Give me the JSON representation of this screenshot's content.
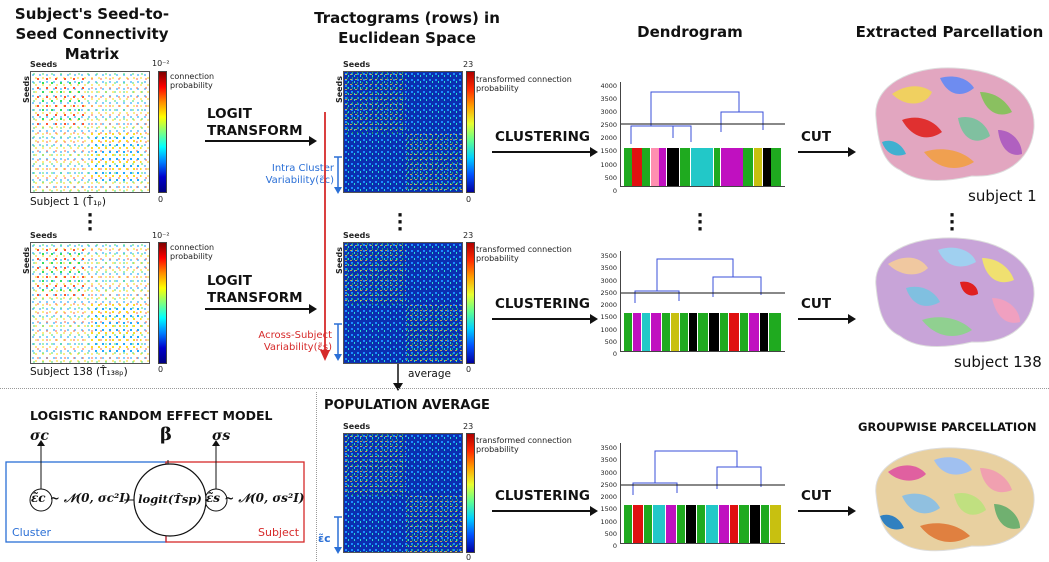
{
  "headers": {
    "col1": "Subject's Seed-to-Seed Connectivity Matrix",
    "col2": "Tractograms (rows) in Euclidean Space",
    "col3": "Dendrogram",
    "col4": "Extracted Parcellation"
  },
  "matrices": {
    "seeds_label": "Seeds",
    "prob_cbar_top": "10⁻²",
    "prob_cbar_bottom": "0",
    "prob_cbar_label": "connection probability",
    "tr_cbar_top": "23",
    "tr_cbar_bottom": "0",
    "tr_cbar_label": "transformed connection probability",
    "subject1_label": "Subject 1 (T̂₁ₚ)",
    "subject138_label": "Subject 138 (T̂₁₃₈ₚ)"
  },
  "operations": {
    "logit": "LOGIT TRANSFORM",
    "clustering": "CLUSTERING",
    "cut": "CUT",
    "average": "average"
  },
  "variability": {
    "intra": "Intra Cluster Variability(ε̃c)",
    "across": "Across-Subject Variability(ε̃s)",
    "pop_eps": "ε̃c"
  },
  "dendro_ticks": [
    "4000",
    "3500",
    "3000",
    "2500",
    "2000",
    "1500",
    "1000",
    "500",
    "0"
  ],
  "subjects": {
    "s1": "subject 1",
    "s138": "subject 138"
  },
  "sections": {
    "population": "POPULATION AVERAGE",
    "model": "LOGISTIC RANDOM EFFECT MODEL",
    "groupwise": "GROUPWISE PARCELLATION"
  },
  "model": {
    "sigma_c": "σc",
    "beta": "β",
    "sigma_s": "σs",
    "eps_c_dist": "ε̃c ~ 𝒩(0, σc²I)",
    "logit_node": "logit(T̂sp)",
    "eps_s_dist": "ε̃s ~ 𝒩(0, σs²I)",
    "cluster": "Cluster",
    "subject": "Subject"
  },
  "colors": {
    "blue": "#2a6fd6",
    "red": "#d62a2a",
    "dendro_branch": "#3a4fd8",
    "cut_line": "#111111"
  }
}
